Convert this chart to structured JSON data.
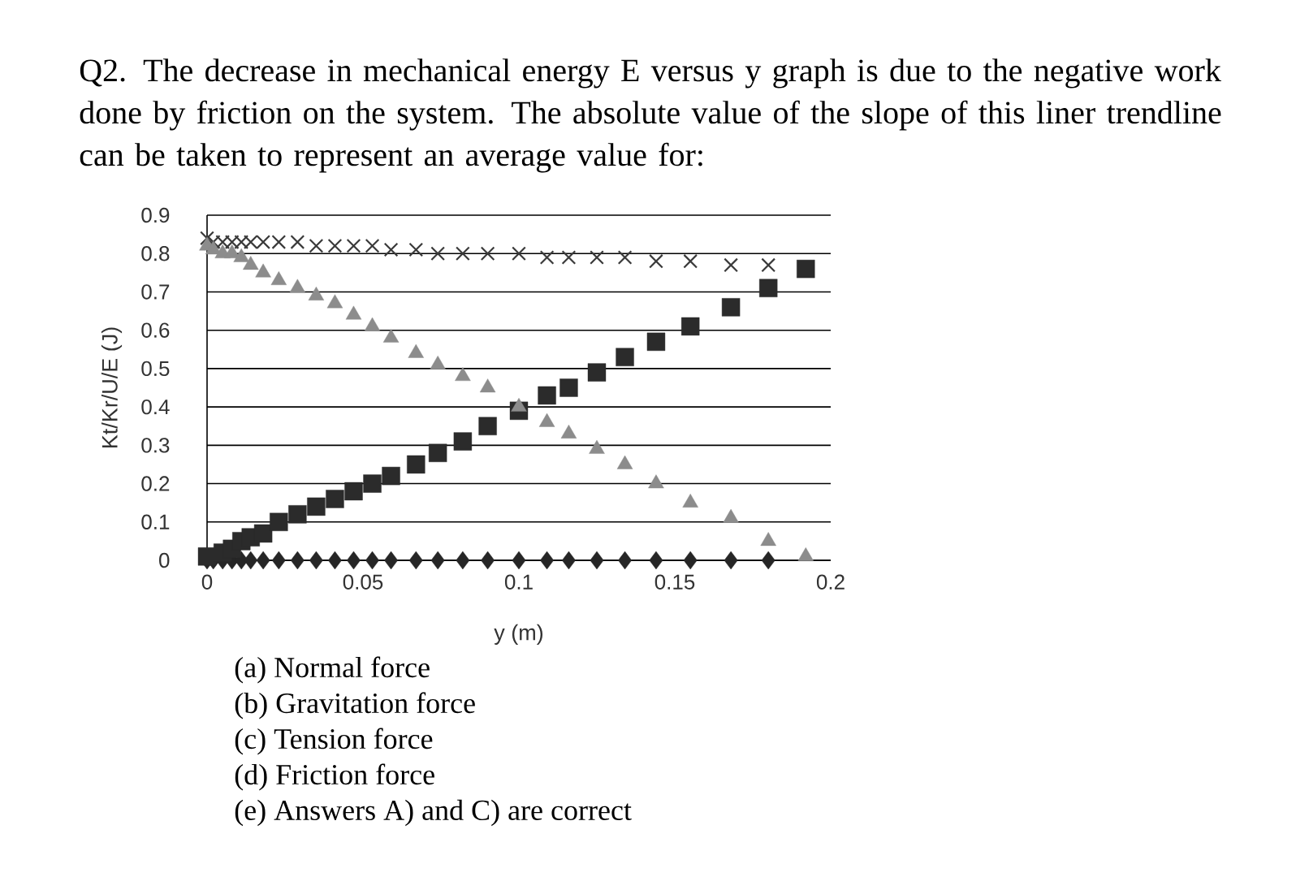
{
  "chart_data": {
    "type": "scatter",
    "title": "Q2. The decrease in mechanical energy E versus y graph is due to the negative work done by friction on the system. The absolute value of the slope of this liner trendline can be taken to represent an average value for:",
    "xlabel": "y (m)",
    "ylabel": "Kt/Kr/U/E (J)",
    "x": [
      0,
      0.002,
      0.005,
      0.008,
      0.011,
      0.014,
      0.018,
      0.023,
      0.029,
      0.035,
      0.041,
      0.047,
      0.053,
      0.059,
      0.067,
      0.074,
      0.082,
      0.09,
      0.1,
      0.109,
      0.116,
      0.125,
      0.134,
      0.144,
      0.155,
      0.168,
      0.18,
      0.192
    ],
    "series": [
      {
        "color": "#262626",
        "marker": "diamond",
        "values": [
          0,
          0,
          0,
          0,
          0,
          0,
          0,
          0,
          0,
          0,
          0,
          0,
          0,
          0,
          0,
          0,
          0,
          0,
          0,
          0,
          0,
          0,
          0,
          0,
          0,
          0,
          0,
          null
        ]
      },
      {
        "color": "#3a3a3a",
        "marker": "cross",
        "values": [
          0.84,
          0.83,
          0.83,
          0.83,
          0.83,
          0.83,
          0.83,
          0.83,
          0.83,
          0.82,
          0.82,
          0.82,
          0.82,
          0.81,
          0.81,
          0.8,
          0.8,
          0.8,
          0.8,
          0.79,
          0.79,
          0.79,
          0.79,
          0.78,
          0.78,
          0.77,
          0.77,
          null
        ]
      },
      {
        "color": "#2b2b2b",
        "marker": "square",
        "values": [
          0.01,
          null,
          0.02,
          0.03,
          0.05,
          0.06,
          0.07,
          0.1,
          0.12,
          0.14,
          0.16,
          0.18,
          0.2,
          0.22,
          0.25,
          0.28,
          0.31,
          0.35,
          0.39,
          0.43,
          0.45,
          0.49,
          0.53,
          0.57,
          0.61,
          0.66,
          0.71,
          0.76
        ]
      },
      {
        "color": "#8c8c8c",
        "marker": "triangle",
        "values": [
          0.82,
          0.81,
          0.8,
          0.8,
          0.79,
          0.77,
          0.75,
          0.73,
          0.71,
          0.69,
          0.67,
          0.64,
          0.61,
          0.58,
          0.54,
          0.51,
          0.48,
          0.45,
          0.4,
          0.36,
          0.33,
          0.29,
          0.25,
          0.2,
          0.15,
          0.11,
          0.05,
          0.01
        ]
      }
    ],
    "xlim": [
      0,
      0.2
    ],
    "xticks": [
      0,
      0.05,
      0.1,
      0.15,
      0.2
    ],
    "ylim": [
      0,
      0.9
    ],
    "yticks": [
      0,
      0.1,
      0.2,
      0.3,
      0.4,
      0.5,
      0.6,
      0.7,
      0.8,
      0.9
    ],
    "grid": "y",
    "annotations": [
      "(a) Normal force",
      "(b) Gravitation force",
      "(c) Tension force",
      "(d) Friction force",
      "(e) Answers A) and C) are correct"
    ]
  }
}
